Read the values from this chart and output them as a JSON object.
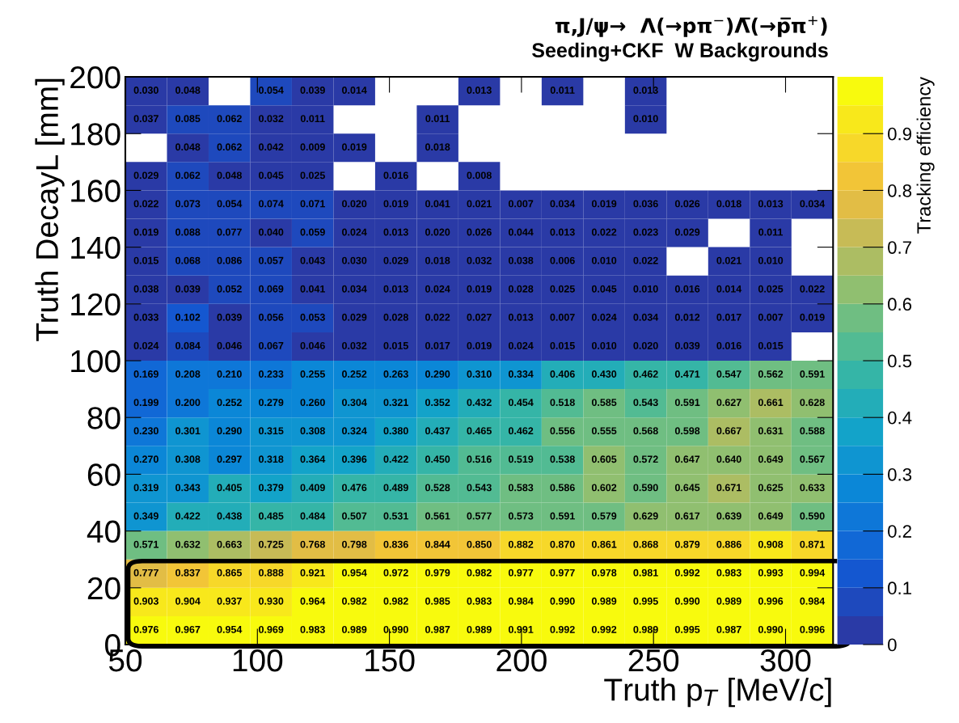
{
  "chart_data": {
    "type": "heatmap",
    "title": "π,J/ψ→  Λ(→pπ$^{−}$)Λ̅(→p̅π$^{+}$)",
    "subtitle": "Seeding+CKF  W Backgrounds",
    "xlabel": "Truth p$_{T}$ [MeV/c]",
    "ylabel": "Truth DecayL [mm]",
    "clabel": "Tracking efficiency",
    "xlim": [
      50,
      318
    ],
    "xticks": [
      50,
      100,
      150,
      200,
      250,
      300
    ],
    "ylim": [
      0,
      200
    ],
    "yticks": [
      0,
      20,
      40,
      60,
      80,
      100,
      120,
      140,
      160,
      180,
      200
    ],
    "clim": [
      0,
      1
    ],
    "cticks": [
      0,
      0.1,
      0.2,
      0.3,
      0.4,
      0.5,
      0.6,
      0.7,
      0.8,
      0.9
    ],
    "cells": [
      [
        0.03,
        0.048,
        null,
        0.054,
        0.039,
        0.014,
        null,
        null,
        0.013,
        null,
        0.011,
        null,
        0.013,
        null,
        null,
        null,
        null
      ],
      [
        0.037,
        0.085,
        0.062,
        0.032,
        0.011,
        null,
        null,
        0.011,
        null,
        null,
        null,
        null,
        0.01,
        null,
        null,
        null,
        null
      ],
      [
        null,
        0.048,
        0.062,
        0.042,
        0.009,
        0.019,
        null,
        0.018,
        null,
        null,
        null,
        null,
        null,
        null,
        null,
        null,
        null
      ],
      [
        0.029,
        0.062,
        0.048,
        0.045,
        0.025,
        null,
        0.016,
        null,
        0.008,
        null,
        null,
        null,
        null,
        null,
        null,
        null,
        null
      ],
      [
        0.022,
        0.073,
        0.054,
        0.074,
        0.071,
        0.02,
        0.019,
        0.041,
        0.021,
        0.007,
        0.034,
        0.019,
        0.036,
        0.026,
        0.018,
        0.013,
        0.034
      ],
      [
        0.019,
        0.088,
        0.077,
        0.04,
        0.059,
        0.024,
        0.013,
        0.02,
        0.026,
        0.044,
        0.013,
        0.022,
        0.023,
        0.029,
        null,
        0.011,
        null
      ],
      [
        0.015,
        0.068,
        0.086,
        0.057,
        0.043,
        0.03,
        0.029,
        0.018,
        0.032,
        0.038,
        0.006,
        0.01,
        0.022,
        null,
        0.021,
        0.01,
        null
      ],
      [
        0.038,
        0.039,
        0.052,
        0.069,
        0.041,
        0.034,
        0.013,
        0.024,
        0.019,
        0.028,
        0.025,
        0.045,
        0.01,
        0.016,
        0.014,
        0.025,
        0.022
      ],
      [
        0.033,
        0.102,
        0.039,
        0.056,
        0.053,
        0.029,
        0.028,
        0.022,
        0.027,
        0.013,
        0.007,
        0.024,
        0.034,
        0.012,
        0.017,
        0.007,
        0.019
      ],
      [
        0.024,
        0.084,
        0.046,
        0.067,
        0.046,
        0.032,
        0.015,
        0.017,
        0.019,
        0.024,
        0.015,
        0.01,
        0.02,
        0.039,
        0.016,
        0.015,
        null
      ],
      [
        0.169,
        0.208,
        0.21,
        0.233,
        0.255,
        0.252,
        0.263,
        0.29,
        0.31,
        0.334,
        0.406,
        0.43,
        0.462,
        0.471,
        0.547,
        0.562,
        0.591
      ],
      [
        0.199,
        0.2,
        0.252,
        0.279,
        0.26,
        0.304,
        0.321,
        0.352,
        0.432,
        0.454,
        0.518,
        0.585,
        0.543,
        0.591,
        0.627,
        0.661,
        0.628
      ],
      [
        0.23,
        0.301,
        0.29,
        0.315,
        0.308,
        0.324,
        0.38,
        0.437,
        0.465,
        0.462,
        0.556,
        0.555,
        0.568,
        0.598,
        0.667,
        0.631,
        0.588
      ],
      [
        0.27,
        0.308,
        0.297,
        0.318,
        0.364,
        0.396,
        0.422,
        0.45,
        0.516,
        0.519,
        0.538,
        0.605,
        0.572,
        0.647,
        0.64,
        0.649,
        0.567
      ],
      [
        0.319,
        0.343,
        0.405,
        0.379,
        0.409,
        0.476,
        0.489,
        0.528,
        0.543,
        0.583,
        0.586,
        0.602,
        0.59,
        0.645,
        0.671,
        0.625,
        0.633
      ],
      [
        0.349,
        0.422,
        0.438,
        0.485,
        0.484,
        0.507,
        0.531,
        0.561,
        0.577,
        0.573,
        0.591,
        0.579,
        0.629,
        0.617,
        0.639,
        0.649,
        0.59
      ],
      [
        0.571,
        0.632,
        0.663,
        0.725,
        0.768,
        0.798,
        0.836,
        0.844,
        0.85,
        0.882,
        0.87,
        0.861,
        0.868,
        0.879,
        0.886,
        0.908,
        0.871
      ],
      [
        0.777,
        0.837,
        0.865,
        0.888,
        0.921,
        0.954,
        0.972,
        0.979,
        0.982,
        0.977,
        0.977,
        0.978,
        0.981,
        0.992,
        0.983,
        0.993,
        0.994
      ],
      [
        0.903,
        0.904,
        0.937,
        0.93,
        0.964,
        0.982,
        0.982,
        0.985,
        0.983,
        0.984,
        0.99,
        0.989,
        0.995,
        0.99,
        0.989,
        0.996,
        0.984
      ],
      [
        0.976,
        0.967,
        0.954,
        0.969,
        0.983,
        0.989,
        0.99,
        0.987,
        0.989,
        0.991,
        0.992,
        0.992,
        0.989,
        0.995,
        0.987,
        0.99,
        0.996
      ]
    ],
    "cell_labels": [
      [
        "0.030",
        "0.048",
        null,
        "0.054",
        "0.039",
        "0.014",
        null,
        null,
        "0.013",
        null,
        "0.011",
        null,
        "0.013",
        null,
        null,
        null,
        null
      ],
      [
        "0.037",
        "0.085",
        "0.062",
        "0.032",
        "0.011",
        null,
        null,
        "0.011",
        null,
        null,
        null,
        null,
        "0.010",
        null,
        null,
        null,
        null
      ],
      [
        null,
        "0.048",
        "0.062",
        "0.042",
        "0.009",
        "0.019",
        null,
        "0.018",
        null,
        null,
        null,
        null,
        null,
        null,
        null,
        null,
        null
      ],
      [
        "0.029",
        "0.062",
        "0.048",
        "0.045",
        "0.025",
        null,
        "0.016",
        null,
        "0.008",
        null,
        null,
        null,
        null,
        null,
        null,
        null,
        null
      ],
      [
        "0.022",
        "0.073",
        "0.054",
        "0.074",
        "0.071",
        "0.020",
        "0.019",
        "0.041",
        "0.021",
        "0.007",
        "0.034",
        "0.019",
        "0.036",
        "0.026",
        "0.018",
        "0.013",
        "0.034"
      ],
      [
        "0.019",
        "0.088",
        "0.077",
        "0.040",
        "0.059",
        "0.024",
        "0.013",
        "0.020",
        "0.026",
        "0.044",
        "0.013",
        "0.022",
        "0.023",
        "0.029",
        null,
        "0.011",
        null
      ],
      [
        "0.015",
        "0.068",
        "0.086",
        "0.057",
        "0.043",
        "0.030",
        "0.029",
        "0.018",
        "0.032",
        "0.038",
        "0.006",
        "0.010",
        "0.022",
        null,
        "0.021",
        "0.010",
        null
      ],
      [
        "0.038",
        "0.039",
        "0.052",
        "0.069",
        "0.041",
        "0.034",
        "0.013",
        "0.024",
        "0.019",
        "0.028",
        "0.025",
        "0.045",
        "0.010",
        "0.016",
        "0.014",
        "0.025",
        "0.022"
      ],
      [
        "0.033",
        "0.102",
        "0.039",
        "0.056",
        "0.053",
        "0.029",
        "0.028",
        "0.022",
        "0.027",
        "0.013",
        "0.007",
        "0.024",
        "0.034",
        "0.012",
        "0.017",
        "0.007",
        "0.019"
      ],
      [
        "0.024",
        "0.084",
        "0.046",
        "0.067",
        "0.046",
        "0.032",
        "0.015",
        "0.017",
        "0.019",
        "0.024",
        "0.015",
        "0.010",
        "0.020",
        "0.039",
        "0.016",
        "0.015",
        null
      ],
      [
        "0.169",
        "0.208",
        "0.210",
        "0.233",
        "0.255",
        "0.252",
        "0.263",
        "0.290",
        "0.310",
        "0.334",
        "0.406",
        "0.430",
        "0.462",
        "0.471",
        "0.547",
        "0.562",
        "0.591"
      ],
      [
        "0.199",
        "0.200",
        "0.252",
        "0.279",
        "0.260",
        "0.304",
        "0.321",
        "0.352",
        "0.432",
        "0.454",
        "0.518",
        "0.585",
        "0.543",
        "0.591",
        "0.627",
        "0.661",
        "0.628"
      ],
      [
        "0.230",
        "0.301",
        "0.290",
        "0.315",
        "0.308",
        "0.324",
        "0.380",
        "0.437",
        "0.465",
        "0.462",
        "0.556",
        "0.555",
        "0.568",
        "0.598",
        "0.667",
        "0.631",
        "0.588"
      ],
      [
        "0.270",
        "0.308",
        "0.297",
        "0.318",
        "0.364",
        "0.396",
        "0.422",
        "0.450",
        "0.516",
        "0.519",
        "0.538",
        "0.605",
        "0.572",
        "0.647",
        "0.640",
        "0.649",
        "0.567"
      ],
      [
        "0.319",
        "0.343",
        "0.405",
        "0.379",
        "0.409",
        "0.476",
        "0.489",
        "0.528",
        "0.543",
        "0.583",
        "0.586",
        "0.602",
        "0.590",
        "0.645",
        "0.671",
        "0.625",
        "0.633"
      ],
      [
        "0.349",
        "0.422",
        "0.438",
        "0.485",
        "0.484",
        "0.507",
        "0.531",
        "0.561",
        "0.577",
        "0.573",
        "0.591",
        "0.579",
        "0.629",
        "0.617",
        "0.639",
        "0.649",
        "0.590"
      ],
      [
        "0.571",
        "0.632",
        "0.663",
        "0.725",
        "0.768",
        "0.798",
        "0.836",
        "0.844",
        "0.850",
        "0.882",
        "0.870",
        "0.861",
        "0.868",
        "0.879",
        "0.886",
        "0.908",
        "0.871"
      ],
      [
        "0.777",
        "0.837",
        "0.865",
        "0.888",
        "0.921",
        "0.954",
        "0.972",
        "0.979",
        "0.982",
        "0.977",
        "0.977",
        "0.978",
        "0.981",
        "0.992",
        "0.983",
        "0.993",
        "0.994"
      ],
      [
        "0.903",
        "0.904",
        "0.937",
        "0.930",
        "0.964",
        "0.982",
        "0.982",
        "0.985",
        "0.983",
        "0.984",
        "0.990",
        "0.989",
        "0.995",
        "0.990",
        "0.989",
        "0.996",
        "0.984"
      ],
      [
        "0.976",
        "0.967",
        "0.954",
        "0.969",
        "0.983",
        "0.989",
        "0.990",
        "0.987",
        "0.989",
        "0.991",
        "0.992",
        "0.992",
        "0.989",
        "0.995",
        "0.987",
        "0.990",
        "0.996"
      ]
    ]
  }
}
